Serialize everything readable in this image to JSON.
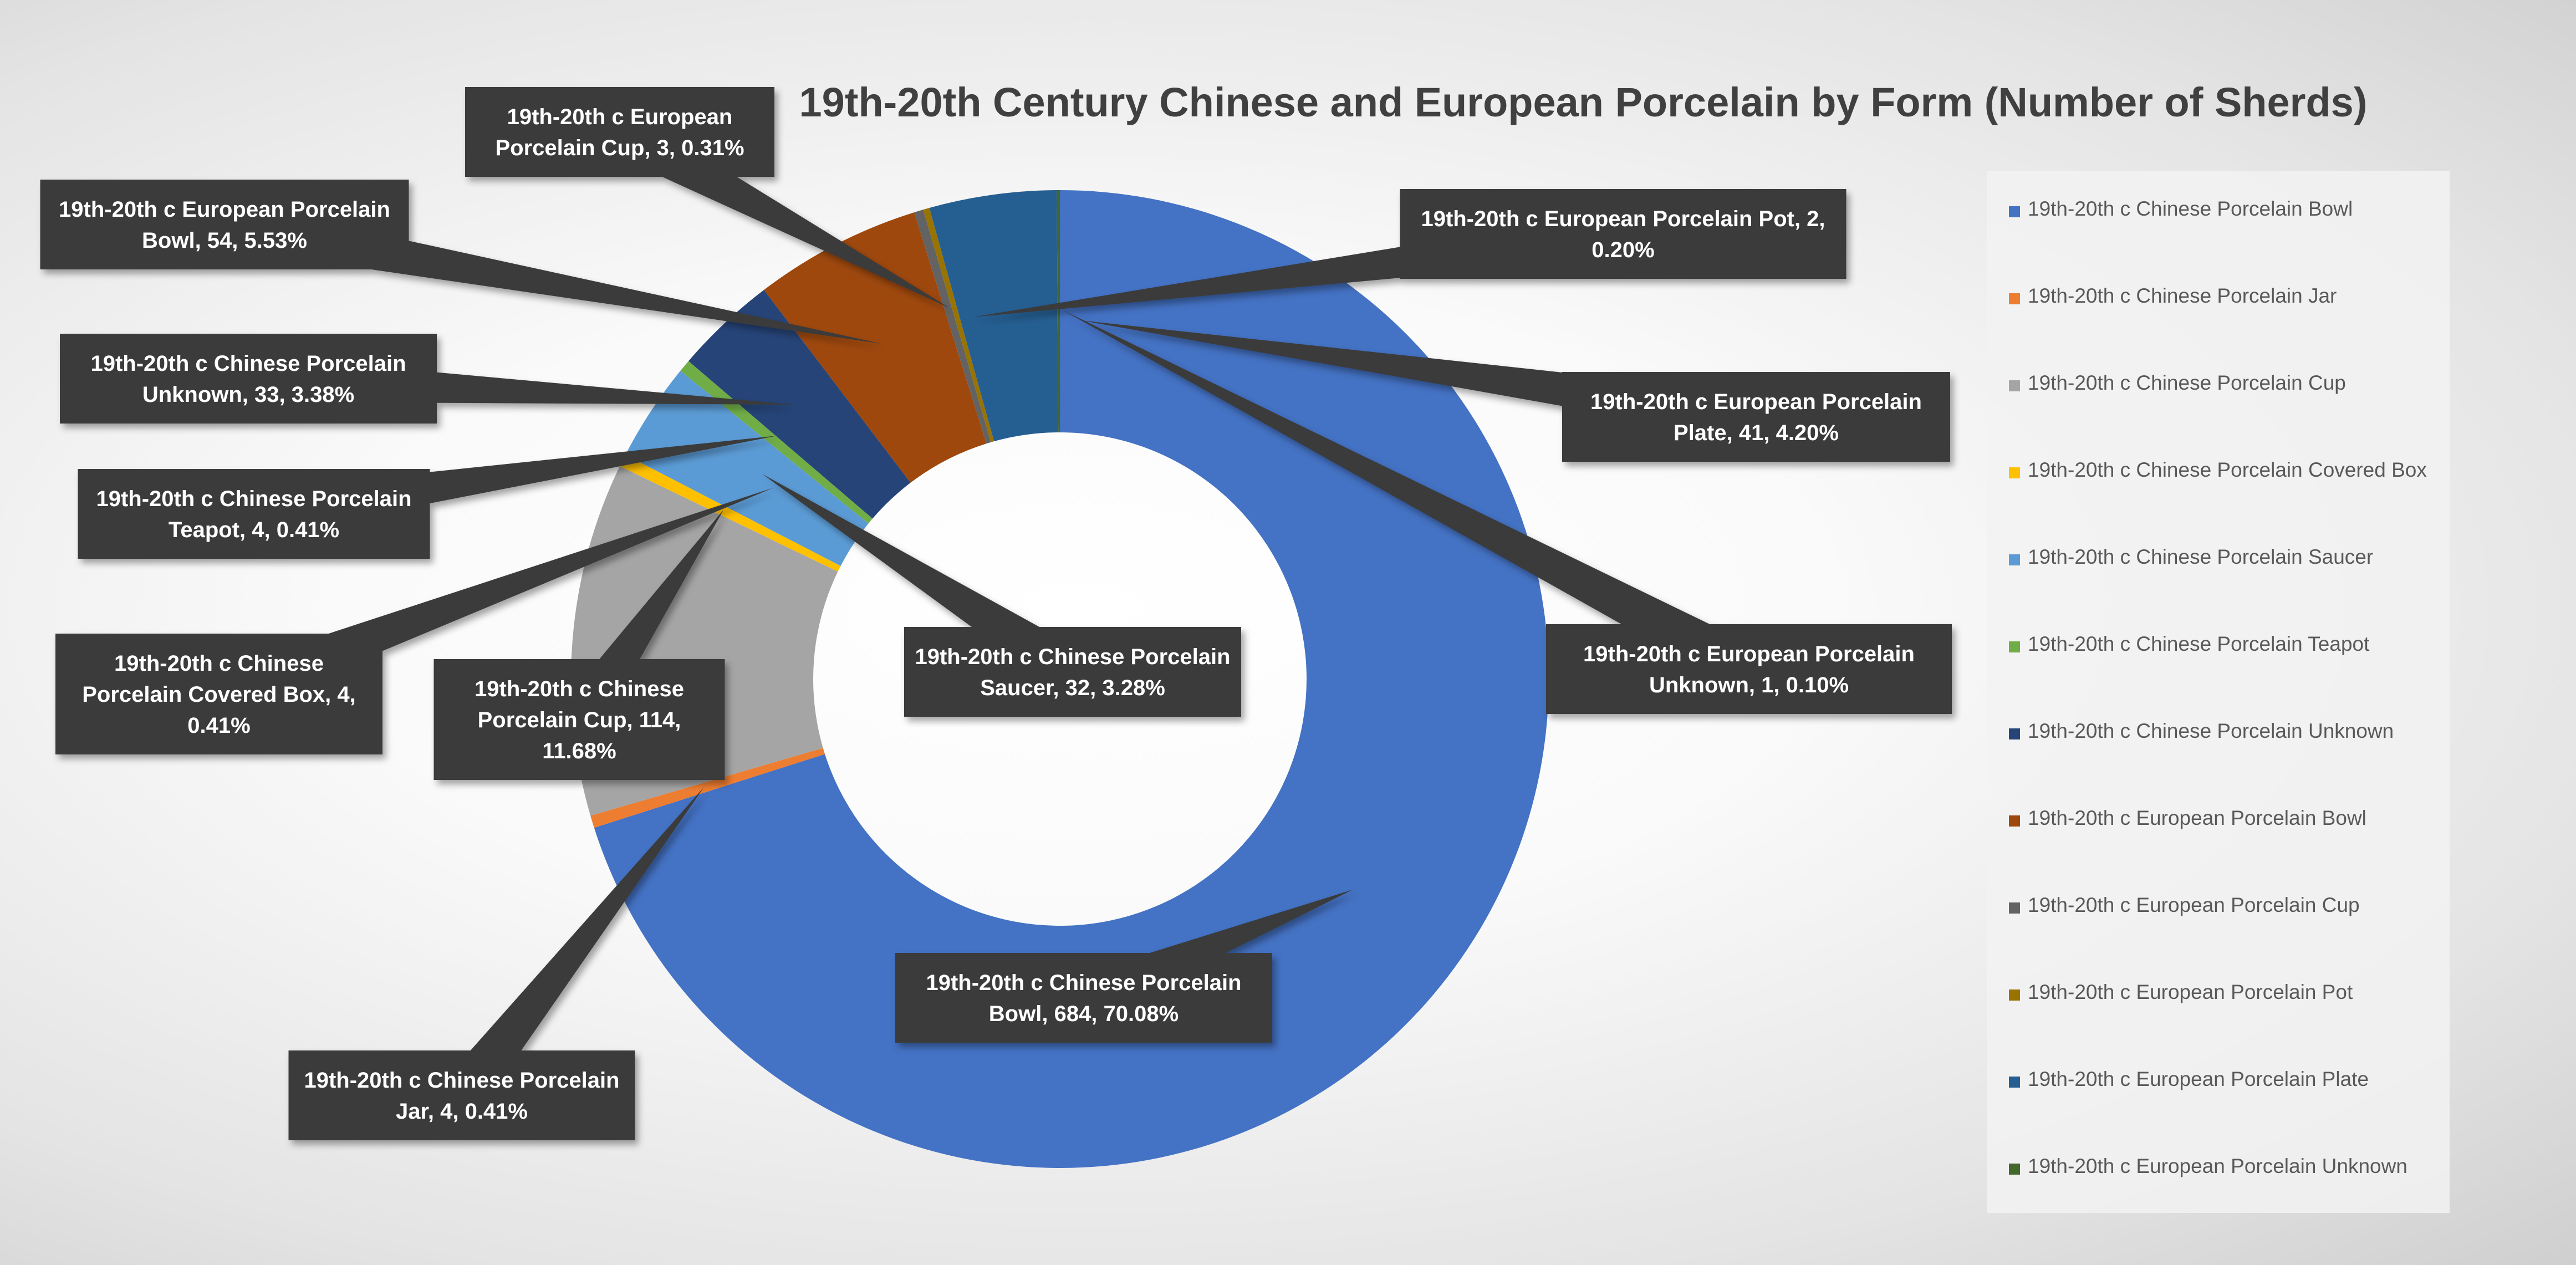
{
  "chart_data": {
    "type": "pie",
    "title": "19th-20th Century Chinese and European Porcelain by Form (Number of Sherds)",
    "slices": [
      {
        "name": "19th-20th c Chinese Porcelain Bowl",
        "value": 684,
        "percent": "70.08%",
        "color": "#4472C4",
        "label_lines": [
          "19th-20th c Chinese Porcelain",
          "Bowl, 684, 70.08%"
        ]
      },
      {
        "name": "19th-20th c Chinese Porcelain Jar",
        "value": 4,
        "percent": "0.41%",
        "color": "#ED7D31",
        "label_lines": [
          "19th-20th c Chinese Porcelain",
          "Jar, 4, 0.41%"
        ]
      },
      {
        "name": "19th-20th c Chinese Porcelain Cup",
        "value": 114,
        "percent": "11.68%",
        "color": "#A5A5A5",
        "label_lines": [
          "19th-20th c Chinese",
          "Porcelain Cup, 114,",
          "11.68%"
        ]
      },
      {
        "name": "19th-20th c Chinese Porcelain Covered Box",
        "value": 4,
        "percent": "0.41%",
        "color": "#FFC000",
        "label_lines": [
          "19th-20th c Chinese",
          "Porcelain Covered Box, 4,",
          "0.41%"
        ]
      },
      {
        "name": "19th-20th c Chinese Porcelain Saucer",
        "value": 32,
        "percent": "3.28%",
        "color": "#5B9BD5",
        "label_lines": [
          "19th-20th c Chinese Porcelain",
          "Saucer, 32, 3.28%"
        ]
      },
      {
        "name": "19th-20th c Chinese Porcelain Teapot",
        "value": 4,
        "percent": "0.41%",
        "color": "#70AD47",
        "label_lines": [
          "19th-20th c Chinese Porcelain",
          "Teapot, 4, 0.41%"
        ]
      },
      {
        "name": "19th-20th c Chinese Porcelain Unknown",
        "value": 33,
        "percent": "3.38%",
        "color": "#264478",
        "label_lines": [
          "19th-20th c Chinese Porcelain",
          "Unknown, 33, 3.38%"
        ]
      },
      {
        "name": "19th-20th c European Porcelain Bowl",
        "value": 54,
        "percent": "5.53%",
        "color": "#9E480E",
        "label_lines": [
          "19th-20th c European Porcelain",
          "Bowl, 54, 5.53%"
        ]
      },
      {
        "name": "19th-20th c European Porcelain Cup",
        "value": 3,
        "percent": "0.31%",
        "color": "#636363",
        "label_lines": [
          "19th-20th c European",
          "Porcelain Cup, 3, 0.31%"
        ]
      },
      {
        "name": "19th-20th c European Porcelain Pot",
        "value": 2,
        "percent": "0.20%",
        "color": "#997300",
        "label_lines": [
          "19th-20th c European Porcelain Pot, 2,",
          "0.20%"
        ]
      },
      {
        "name": "19th-20th c European Porcelain Plate",
        "value": 41,
        "percent": "4.20%",
        "color": "#255E91",
        "label_lines": [
          "19th-20th c European Porcelain",
          "Plate, 41, 4.20%"
        ]
      },
      {
        "name": "19th-20th c European Porcelain Unknown",
        "value": 1,
        "percent": "0.10%",
        "color": "#43682B",
        "label_lines": [
          "19th-20th c European Porcelain",
          "Unknown, 1, 0.10%"
        ]
      }
    ],
    "donut": true,
    "legend_position": "right",
    "data_labels": "callouts"
  }
}
